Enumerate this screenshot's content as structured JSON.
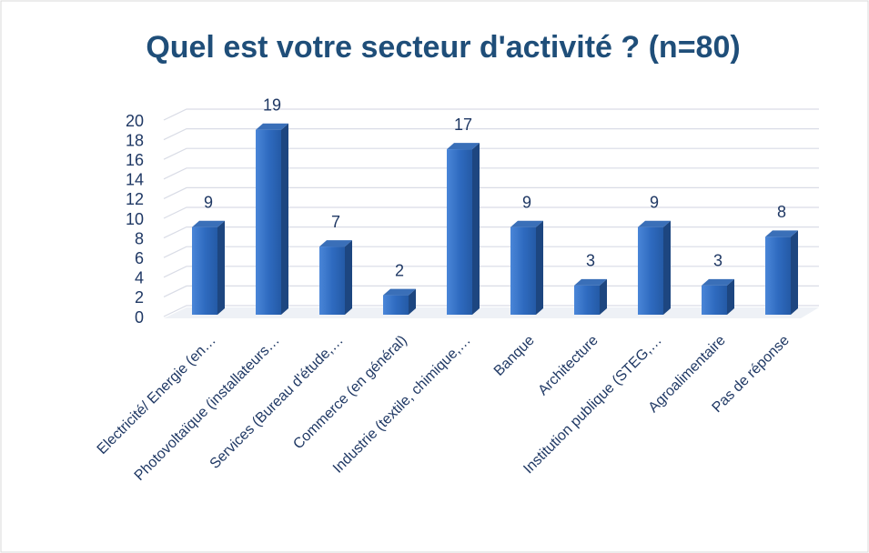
{
  "chart_data": {
    "type": "bar3d",
    "title": "Quel est votre secteur d'activité ?  (n=80)",
    "categories": [
      "Electricité/ Energie (en…",
      "Photovoltaïque (installateurs…",
      "Services (Bureau d'étude,…",
      "Commerce (en général)",
      "Industrie (textile, chimique,…",
      "Banque",
      "Architecture",
      "Institution publique (STEG,…",
      "Agroalimentaire",
      "Pas de réponse"
    ],
    "values": [
      9,
      19,
      7,
      2,
      17,
      9,
      3,
      9,
      3,
      8
    ],
    "color": "#2e6ec2",
    "ylim": [
      0,
      20
    ],
    "yticks": [
      0,
      2,
      4,
      6,
      8,
      10,
      12,
      14,
      16,
      18,
      20
    ],
    "grid": true
  }
}
